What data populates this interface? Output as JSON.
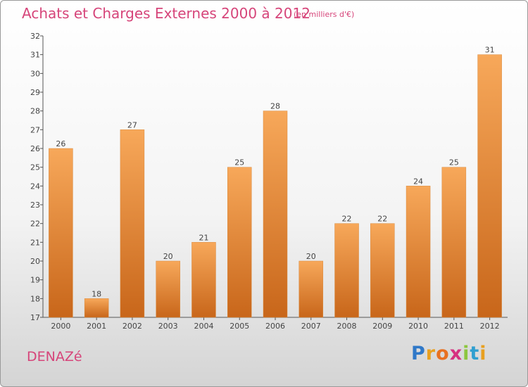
{
  "header": {
    "title": "Achats et Charges Externes 2000 à 2012",
    "subtitle": "(en milliers d'€)"
  },
  "commune": "DENAZé",
  "logo": {
    "text": "Proxiti",
    "letters": [
      "P",
      "r",
      "o",
      "x",
      "i",
      "t",
      "i"
    ]
  },
  "colors": {
    "title": "#d6457a",
    "bar_top": "#f7a85a",
    "bar_bottom": "#c8661a",
    "axis": "#555555"
  },
  "chart_data": {
    "type": "bar",
    "categories": [
      "2000",
      "2001",
      "2002",
      "2003",
      "2004",
      "2005",
      "2006",
      "2007",
      "2008",
      "2009",
      "2010",
      "2011",
      "2012"
    ],
    "values": [
      26,
      18,
      27,
      20,
      21,
      25,
      28,
      20,
      22,
      22,
      24,
      25,
      31
    ],
    "ylim": [
      17,
      32
    ],
    "yticks": [
      17,
      18,
      19,
      20,
      21,
      22,
      23,
      24,
      25,
      26,
      27,
      28,
      29,
      30,
      31,
      32
    ],
    "grid": false,
    "data_labels": true
  }
}
